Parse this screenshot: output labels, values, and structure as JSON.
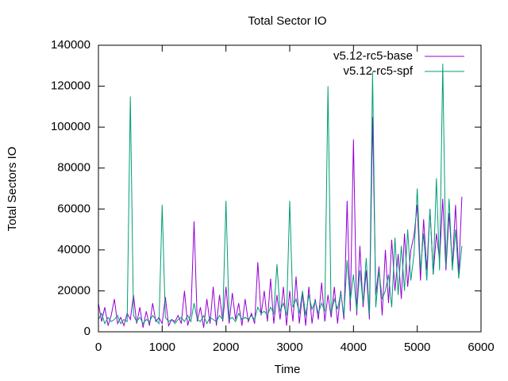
{
  "chart_data": {
    "type": "line",
    "title": "Total Sector IO",
    "x_label": "Time",
    "y_label": "Total Sectors IO",
    "x": [
      0,
      50,
      100,
      150,
      200,
      250,
      300,
      350,
      400,
      450,
      500,
      550,
      600,
      650,
      700,
      750,
      800,
      850,
      900,
      950,
      1000,
      1050,
      1100,
      1150,
      1200,
      1250,
      1300,
      1350,
      1400,
      1450,
      1500,
      1550,
      1600,
      1650,
      1700,
      1750,
      1800,
      1850,
      1900,
      1950,
      2000,
      2050,
      2100,
      2150,
      2200,
      2250,
      2300,
      2350,
      2400,
      2450,
      2500,
      2550,
      2600,
      2650,
      2700,
      2750,
      2800,
      2850,
      2900,
      2950,
      3000,
      3050,
      3100,
      3150,
      3200,
      3250,
      3300,
      3350,
      3400,
      3450,
      3500,
      3550,
      3600,
      3650,
      3700,
      3750,
      3800,
      3850,
      3900,
      3950,
      4000,
      4050,
      4100,
      4150,
      4200,
      4250,
      4300,
      4350,
      4400,
      4450,
      4500,
      4550,
      4600,
      4650,
      4700,
      4750,
      4800,
      4850,
      4900,
      4950,
      5000,
      5050,
      5100,
      5150,
      5200,
      5250,
      5300,
      5350,
      5400,
      5450,
      5500,
      5550,
      5600,
      5650,
      5700
    ],
    "series": [
      {
        "name": "v5.12-rc5-base",
        "color": "#9400d3",
        "values": [
          14000,
          5000,
          12000,
          3000,
          8000,
          16000,
          4000,
          7000,
          3000,
          9000,
          6000,
          18000,
          4000,
          12000,
          2000,
          10000,
          3000,
          14000,
          5000,
          7000,
          4000,
          17000,
          3000,
          6000,
          5000,
          8000,
          4000,
          20000,
          3000,
          9000,
          54000,
          5000,
          12000,
          2000,
          16000,
          4000,
          22000,
          3000,
          18000,
          5000,
          22000,
          4000,
          19000,
          6000,
          14000,
          3000,
          16000,
          5000,
          9000,
          4000,
          34000,
          8000,
          20000,
          5000,
          26000,
          4000,
          18000,
          6000,
          22000,
          3000,
          20000,
          5000,
          27000,
          4000,
          19000,
          3000,
          22000,
          4000,
          16000,
          6000,
          24000,
          5000,
          18000,
          7000,
          22000,
          4000,
          20000,
          6000,
          64000,
          10000,
          94000,
          8000,
          42000,
          12000,
          30000,
          6000,
          105000,
          18000,
          32000,
          8000,
          40000,
          14000,
          45000,
          20000,
          38000,
          16000,
          48000,
          22000,
          40000,
          47000,
          62000,
          25000,
          55000,
          30000,
          60000,
          28000,
          48000,
          35000,
          65000,
          30000,
          58000,
          32000,
          62000,
          28000,
          66000
        ]
      },
      {
        "name": "v5.12-rc5-spf",
        "color": "#009e73",
        "values": [
          6000,
          9000,
          4000,
          7000,
          5000,
          6000,
          8000,
          4000,
          6000,
          5000,
          115000,
          8000,
          5000,
          7000,
          4000,
          6000,
          5000,
          8000,
          6000,
          4000,
          62000,
          7000,
          5000,
          6000,
          4000,
          6000,
          7000,
          5000,
          8000,
          5000,
          14000,
          6000,
          5000,
          8000,
          4000,
          7000,
          6000,
          5000,
          8000,
          6000,
          64000,
          6000,
          7000,
          5000,
          9000,
          6000,
          7000,
          6000,
          8000,
          6000,
          12000,
          9000,
          10000,
          8000,
          12000,
          9000,
          33000,
          10000,
          14000,
          8000,
          64000,
          12000,
          16000,
          9000,
          20000,
          8000,
          18000,
          11000,
          15000,
          9000,
          14000,
          10000,
          120000,
          9000,
          16000,
          11000,
          19000,
          8000,
          35000,
          15000,
          28000,
          10000,
          30000,
          14000,
          36000,
          8000,
          127000,
          12000,
          30000,
          16000,
          20000,
          28000,
          12000,
          46000,
          18000,
          42000,
          20000,
          50000,
          25000,
          38000,
          70000,
          30000,
          48000,
          25000,
          60000,
          28000,
          75000,
          30000,
          131000,
          32000,
          65000,
          30000,
          50000,
          26000,
          42000
        ]
      }
    ],
    "xlim": [
      0,
      6000
    ],
    "xticks": [
      0,
      1000,
      2000,
      3000,
      4000,
      5000,
      6000
    ],
    "ylim": [
      0,
      140000
    ],
    "yticks": [
      0,
      20000,
      40000,
      60000,
      80000,
      100000,
      120000,
      140000
    ],
    "legend": "top-right"
  }
}
